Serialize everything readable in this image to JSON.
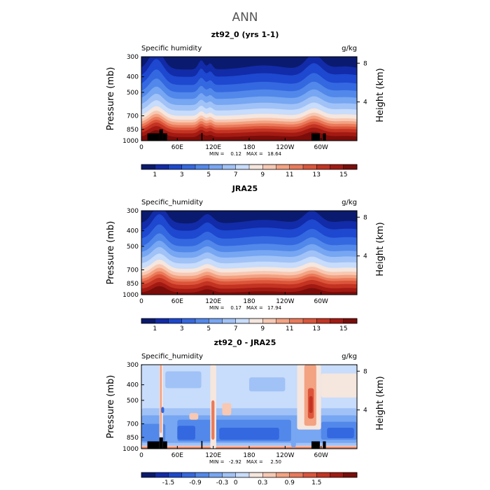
{
  "figure": {
    "title": "ANN"
  },
  "colormaps": {
    "humidity": [
      "#0a1a6e",
      "#122ba8",
      "#1d48cf",
      "#3468e0",
      "#5288ea",
      "#77a6f2",
      "#a0c2f7",
      "#c8dcfb",
      "#f5e6de",
      "#f8c8b2",
      "#f3a282",
      "#ea7a5a",
      "#dc553a",
      "#c43322",
      "#a31a13",
      "#7a0d0a"
    ],
    "difference": [
      "#0a1a6e",
      "#122ba8",
      "#1d48cf",
      "#3468e0",
      "#5288ea",
      "#77a6f2",
      "#a0c2f7",
      "#c8dcfb",
      "#f5e6de",
      "#f8c8b2",
      "#f3a282",
      "#ea7a5a",
      "#dc553a",
      "#c43322",
      "#a31a13",
      "#7a0d0a"
    ],
    "terrain": "#000000"
  },
  "chart_data": [
    {
      "type": "heatmap",
      "title": "zt92_0 (yrs 1-1)",
      "left_label": "Specific humidity",
      "right_label": "g/kg",
      "xlabel": "",
      "ylabel": "Pressure (mb)",
      "ylabel_right": "Height (km)",
      "x_ticks": [
        "0",
        "60E",
        "120E",
        "180",
        "120W",
        "60W"
      ],
      "x_tick_values": [
        0,
        60,
        120,
        180,
        240,
        300
      ],
      "xlim": [
        0,
        360
      ],
      "y_ticks": [
        "300",
        "400",
        "500",
        "700",
        "850",
        "1000"
      ],
      "y_tick_values": [
        300,
        400,
        500,
        700,
        850,
        1000
      ],
      "ylim": [
        300,
        1000
      ],
      "right_ticks": [
        "8",
        "4"
      ],
      "right_tick_values": [
        8,
        4
      ],
      "stats_min_label": "MIN =",
      "stats_min": "0.12",
      "stats_max_label": "MAX =",
      "stats_max": "18.64",
      "colorbar_labels": [
        "1",
        "3",
        "5",
        "7",
        "9",
        "11",
        "13",
        "15"
      ],
      "field": {
        "levels": [
          1,
          2,
          3,
          4,
          5,
          6,
          7,
          8,
          9,
          10,
          11,
          12,
          13,
          14,
          15
        ],
        "level_pressures": [
          360,
          400,
          450,
          500,
          550,
          600,
          650,
          700,
          740,
          770,
          800,
          830,
          860,
          900,
          950
        ],
        "bumps": [
          [
            25,
            90,
            12
          ],
          [
            100,
            45,
            5
          ],
          [
            115,
            30,
            4
          ],
          [
            205,
            20,
            30
          ],
          [
            288,
            70,
            14
          ],
          [
            340,
            15,
            20
          ]
        ]
      },
      "terrain": [
        [
          10,
          30,
          900
        ],
        [
          30,
          36,
          850
        ],
        [
          36,
          43,
          900
        ],
        [
          100,
          102,
          895
        ],
        [
          284,
          298,
          900
        ],
        [
          303,
          308,
          900
        ]
      ]
    },
    {
      "type": "heatmap",
      "title": "JRA25",
      "left_label": "Specific_humidity",
      "right_label": "g/kg",
      "xlabel": "",
      "ylabel": "Pressure (mb)",
      "ylabel_right": "Height (km)",
      "x_ticks": [
        "0",
        "60E",
        "120E",
        "180",
        "120W",
        "60W"
      ],
      "x_tick_values": [
        0,
        60,
        120,
        180,
        240,
        300
      ],
      "xlim": [
        0,
        360
      ],
      "y_ticks": [
        "300",
        "400",
        "500",
        "700",
        "850",
        "1000"
      ],
      "y_tick_values": [
        300,
        400,
        500,
        700,
        850,
        1000
      ],
      "ylim": [
        300,
        1000
      ],
      "right_ticks": [
        "8",
        "4"
      ],
      "right_tick_values": [
        8,
        4
      ],
      "stats_min_label": "MIN =",
      "stats_min": "0.17",
      "stats_max_label": "MAX =",
      "stats_max": "17.94",
      "colorbar_labels": [
        "1",
        "3",
        "5",
        "7",
        "9",
        "11",
        "13",
        "15"
      ],
      "field": {
        "levels": [
          1,
          2,
          3,
          4,
          5,
          6,
          7,
          8,
          9,
          10,
          11,
          12,
          13,
          14,
          15
        ],
        "level_pressures": [
          360,
          400,
          450,
          500,
          545,
          590,
          640,
          690,
          730,
          765,
          800,
          830,
          870,
          920,
          970
        ],
        "bumps": [
          [
            30,
            85,
            12
          ],
          [
            110,
            45,
            10
          ],
          [
            205,
            18,
            30
          ],
          [
            285,
            60,
            14
          ],
          [
            345,
            12,
            20
          ]
        ]
      },
      "terrain": []
    },
    {
      "type": "heatmap",
      "title": "zt92_0 - JRA25",
      "left_label": "Specific_humidity",
      "right_label": "g/kg",
      "xlabel": "",
      "ylabel": "Pressure (mb)",
      "ylabel_right": "Height (km)",
      "x_ticks": [
        "0",
        "60E",
        "120E",
        "180",
        "120W",
        "60W"
      ],
      "x_tick_values": [
        0,
        60,
        120,
        180,
        240,
        300
      ],
      "xlim": [
        0,
        360
      ],
      "y_ticks": [
        "300",
        "400",
        "500",
        "700",
        "850",
        "1000"
      ],
      "y_tick_values": [
        300,
        400,
        500,
        700,
        850,
        1000
      ],
      "ylim": [
        300,
        1000
      ],
      "right_ticks": [
        "8",
        "4"
      ],
      "right_tick_values": [
        8,
        4
      ],
      "stats_min_label": "MIN =",
      "stats_min": "-2.92",
      "stats_max_label": "MAX =",
      "stats_max": "2.50",
      "colorbar_labels": [
        "-1.5",
        "-0.9",
        "-0.3",
        "0",
        "0.3",
        "0.9",
        "1.5"
      ],
      "colorbar_label_slots": [
        2,
        4,
        6,
        7,
        9,
        11,
        13
      ],
      "field": {
        "layers": [
          {
            "x0": 0,
            "x1": 360,
            "p0": 300,
            "p1": 1000,
            "level": 7
          },
          {
            "x0": 0,
            "x1": 360,
            "p0": 560,
            "p1": 960,
            "level": 6
          },
          {
            "x0": 0,
            "x1": 360,
            "p0": 620,
            "p1": 920,
            "level": 5
          },
          {
            "x0": 60,
            "x1": 250,
            "p0": 660,
            "p1": 900,
            "level": 4
          },
          {
            "x0": 300,
            "x1": 360,
            "p0": 680,
            "p1": 880,
            "level": 4
          },
          {
            "x0": 0,
            "x1": 40,
            "p0": 700,
            "p1": 900,
            "level": 4
          },
          {
            "x0": 60,
            "x1": 90,
            "p0": 720,
            "p1": 880,
            "level": 3
          },
          {
            "x0": 130,
            "x1": 230,
            "p0": 740,
            "p1": 880,
            "level": 3
          },
          {
            "x0": 310,
            "x1": 355,
            "p0": 740,
            "p1": 860,
            "level": 3
          },
          {
            "x0": 0,
            "x1": 360,
            "p0": 960,
            "p1": 1000,
            "level": 9
          },
          {
            "x0": 0,
            "x1": 360,
            "p0": 975,
            "p1": 1000,
            "level": 11
          },
          {
            "x0": 30,
            "x1": 36,
            "p0": 300,
            "p1": 1000,
            "level": 8
          },
          {
            "x0": 31,
            "x1": 34,
            "p0": 300,
            "p1": 800,
            "level": 10
          },
          {
            "x0": 33,
            "x1": 38,
            "p0": 550,
            "p1": 600,
            "level": 3
          },
          {
            "x0": 115,
            "x1": 125,
            "p0": 300,
            "p1": 1000,
            "level": 8
          },
          {
            "x0": 117,
            "x1": 122,
            "p0": 500,
            "p1": 880,
            "level": 11
          },
          {
            "x0": 135,
            "x1": 150,
            "p0": 520,
            "p1": 620,
            "level": 9
          },
          {
            "x0": 80,
            "x1": 95,
            "p0": 600,
            "p1": 660,
            "level": 9
          },
          {
            "x0": 260,
            "x1": 300,
            "p0": 300,
            "p1": 760,
            "level": 8
          },
          {
            "x0": 272,
            "x1": 292,
            "p0": 300,
            "p1": 720,
            "level": 10
          },
          {
            "x0": 278,
            "x1": 288,
            "p0": 420,
            "p1": 650,
            "level": 12
          },
          {
            "x0": 280,
            "x1": 286,
            "p0": 470,
            "p1": 600,
            "level": 13
          },
          {
            "x0": 300,
            "x1": 360,
            "p0": 340,
            "p1": 480,
            "level": 8
          },
          {
            "x0": 180,
            "x1": 240,
            "p0": 360,
            "p1": 440,
            "level": 6
          },
          {
            "x0": 40,
            "x1": 100,
            "p0": 330,
            "p1": 420,
            "level": 6
          },
          {
            "x0": 250,
            "x1": 258,
            "p0": 760,
            "p1": 980,
            "level": 5
          }
        ]
      },
      "terrain": [
        [
          10,
          30,
          900
        ],
        [
          30,
          36,
          850
        ],
        [
          36,
          43,
          900
        ],
        [
          100,
          102,
          895
        ],
        [
          284,
          298,
          900
        ],
        [
          303,
          308,
          900
        ]
      ]
    }
  ]
}
